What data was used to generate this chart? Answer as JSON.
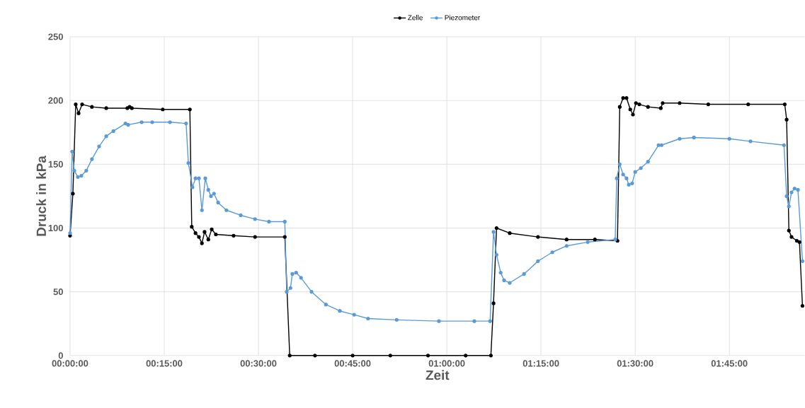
{
  "chart_data": {
    "type": "line",
    "xlabel": "Zeit",
    "ylabel": "Druck in kPa",
    "xlim": [
      0,
      1.95
    ],
    "ylim": [
      0,
      250
    ],
    "xticks": [
      {
        "value": 0,
        "label": "00:00:00"
      },
      {
        "value": 0.25,
        "label": "00:15:00"
      },
      {
        "value": 0.5,
        "label": "00:30:00"
      },
      {
        "value": 0.75,
        "label": "00:45:00"
      },
      {
        "value": 1,
        "label": "01:00:00"
      },
      {
        "value": 1.25,
        "label": "01:15:00"
      },
      {
        "value": 1.5,
        "label": "01:30:00"
      },
      {
        "value": 1.75,
        "label": "01:45:00"
      }
    ],
    "yticks": [
      0,
      50,
      100,
      150,
      200,
      250
    ],
    "grid": true,
    "legend": "top",
    "marker": "circle",
    "line_style": "solid",
    "series": [
      {
        "name": "Zelle",
        "color": "#000000",
        "x": [
          0,
          0.0075,
          0.015,
          0.0226,
          0.032,
          0.058,
          0.096,
          0.152,
          0.158,
          0.164,
          0.246,
          0.318,
          0.323,
          0.333,
          0.342,
          0.35,
          0.357,
          0.367,
          0.376,
          0.387,
          0.434,
          0.491,
          0.57,
          0.583,
          0.65,
          0.75,
          0.85,
          0.95,
          1.05,
          1.117,
          1.124,
          1.132,
          1.167,
          1.242,
          1.318,
          1.393,
          1.453,
          1.459,
          1.468,
          1.477,
          1.487,
          1.494,
          1.502,
          1.511,
          1.534,
          1.568,
          1.573,
          1.618,
          1.694,
          1.8,
          1.897,
          1.902,
          1.908,
          1.915,
          1.929,
          1.936,
          1.944
        ],
        "values": [
          94,
          127,
          197,
          190,
          197,
          195,
          194,
          194,
          195,
          194,
          193,
          193,
          101,
          96,
          93,
          88,
          97,
          91,
          99,
          95,
          94,
          93,
          93,
          0,
          0,
          0,
          0,
          0,
          0,
          0,
          41,
          100,
          96,
          93,
          91,
          91,
          90,
          195,
          202,
          202,
          193,
          189,
          198,
          197,
          195,
          194,
          198,
          198,
          197,
          197,
          197,
          185,
          98,
          93,
          90,
          89,
          39
        ]
      },
      {
        "name": "Piezometer",
        "color": "#5b9bd5",
        "x": [
          0,
          0.0056,
          0.0113,
          0.0207,
          0.03,
          0.043,
          0.058,
          0.077,
          0.096,
          0.115,
          0.147,
          0.154,
          0.19,
          0.218,
          0.265,
          0.308,
          0.314,
          0.325,
          0.333,
          0.342,
          0.35,
          0.359,
          0.367,
          0.374,
          0.382,
          0.393,
          0.415,
          0.453,
          0.491,
          0.528,
          0.57,
          0.575,
          0.585,
          0.59,
          0.6,
          0.613,
          0.641,
          0.679,
          0.716,
          0.754,
          0.791,
          0.867,
          0.979,
          1.073,
          1.115,
          1.124,
          1.132,
          1.143,
          1.152,
          1.167,
          1.205,
          1.242,
          1.28,
          1.318,
          1.374,
          1.447,
          1.451,
          1.459,
          1.468,
          1.477,
          1.483,
          1.492,
          1.5,
          1.515,
          1.534,
          1.562,
          1.57,
          1.618,
          1.656,
          1.75,
          1.806,
          1.895,
          1.902,
          1.908,
          1.915,
          1.923,
          1.932,
          1.944
        ],
        "values": [
          96,
          160,
          145,
          140,
          141,
          145,
          154,
          164,
          172,
          176,
          182,
          181,
          183,
          183,
          183,
          182,
          151,
          132,
          139,
          139,
          114,
          139,
          130,
          125,
          127,
          120,
          114,
          110,
          107,
          105,
          105,
          50,
          53,
          64,
          65,
          61,
          50,
          40,
          35,
          32,
          29,
          28,
          27,
          27,
          27,
          97,
          79,
          65,
          59,
          57,
          64,
          74,
          81,
          86,
          89,
          91,
          139,
          150,
          142,
          139,
          134,
          135,
          144,
          147,
          152,
          165,
          165,
          170,
          171,
          170,
          168,
          165,
          125,
          117,
          128,
          131,
          130,
          74
        ]
      }
    ]
  }
}
